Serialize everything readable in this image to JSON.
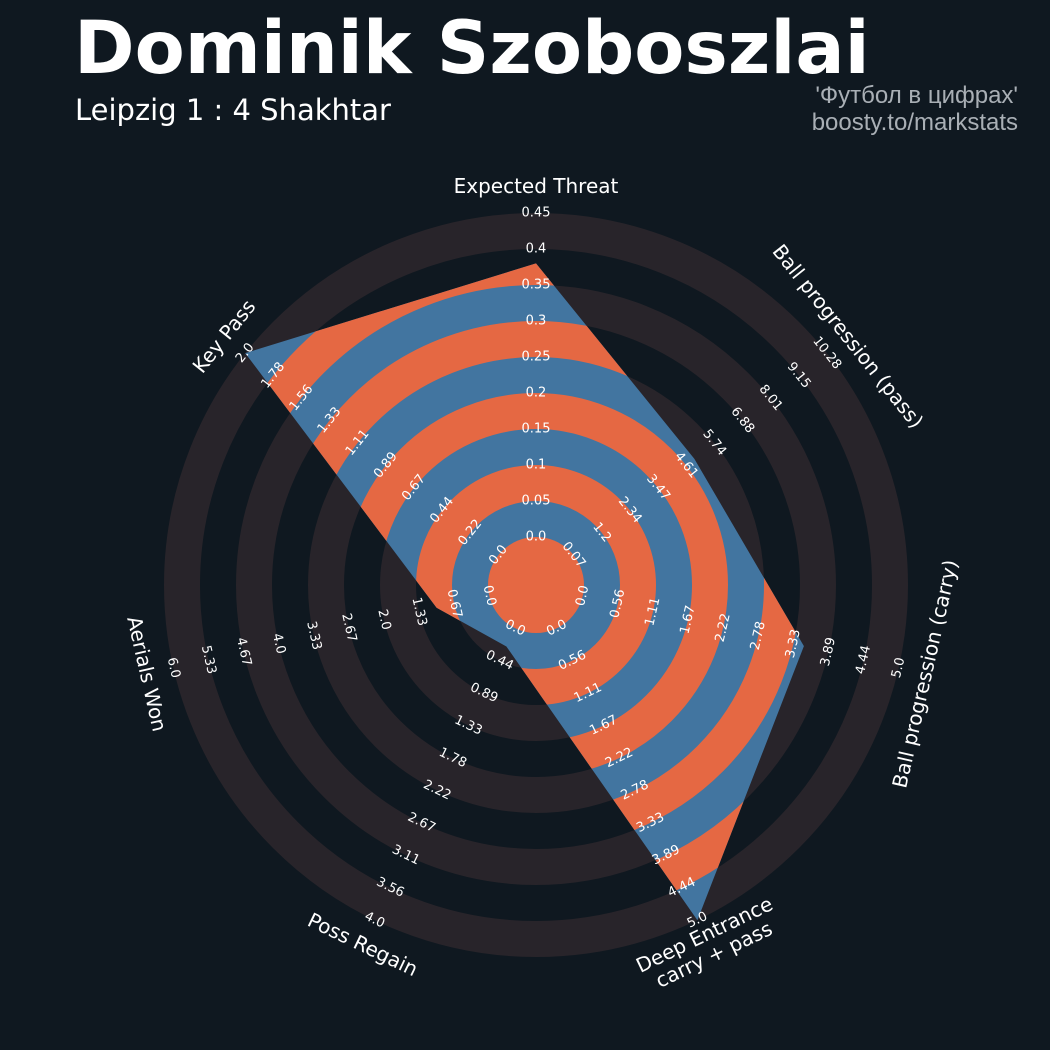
{
  "header": {
    "title": "Dominik Szoboszlai",
    "subtitle": "Leipzig 1 : 4 Shakhtar",
    "credit_line1": "'Футбол в цифрах'",
    "credit_line2": "boosty.to/markstats"
  },
  "colors": {
    "background": "#0f1820",
    "ring_band": "#28242a",
    "player_fill": "#4275a0",
    "player_ring": "#e56843",
    "text": "#ffffff",
    "credit": "#a9afb5"
  },
  "chart_data": {
    "type": "radar",
    "grid": true,
    "legend": "none",
    "axes": [
      {
        "label": "Expected Threat",
        "label_lines": [
          "Expected Threat"
        ],
        "min": 0.0,
        "max": 0.45,
        "ticks": [
          "0.0",
          "0.05",
          "0.1",
          "0.15",
          "0.2",
          "0.25",
          "0.3",
          "0.35",
          "0.4",
          "0.45"
        ]
      },
      {
        "label": "Ball progression (pass)",
        "label_lines": [
          "Ball progression (pass)"
        ],
        "min": 0.0,
        "max": 10.28,
        "ticks": [
          "0.07",
          "1.2",
          "2.34",
          "3.47",
          "4.61",
          "5.74",
          "6.88",
          "8.01",
          "9.15",
          "10.28"
        ]
      },
      {
        "label": "Ball progression (carry)",
        "label_lines": [
          "Ball progression (carry)"
        ],
        "min": 0.0,
        "max": 5.0,
        "ticks": [
          "0.0",
          "0.56",
          "1.11",
          "1.67",
          "2.22",
          "2.78",
          "3.33",
          "3.89",
          "4.44",
          "5.0"
        ]
      },
      {
        "label": "Deep Entrance carry + pass",
        "label_lines": [
          "Deep Entrance",
          "carry + pass"
        ],
        "min": 0.0,
        "max": 5.0,
        "ticks": [
          "0.0",
          "0.56",
          "1.11",
          "1.67",
          "2.22",
          "2.78",
          "3.33",
          "3.89",
          "4.44",
          "5.0"
        ]
      },
      {
        "label": "Poss Regain",
        "label_lines": [
          "Poss Regain"
        ],
        "min": 0.0,
        "max": 4.0,
        "ticks": [
          "0.0",
          "0.44",
          "0.89",
          "1.33",
          "1.78",
          "2.22",
          "2.67",
          "3.11",
          "3.56",
          "4.0"
        ]
      },
      {
        "label": "Aerials Won",
        "label_lines": [
          "Aerials Won"
        ],
        "min": 0.0,
        "max": 6.0,
        "ticks": [
          "0.0",
          "0.67",
          "1.33",
          "2.0",
          "2.67",
          "3.33",
          "4.0",
          "4.67",
          "5.33",
          "6.0"
        ]
      },
      {
        "label": "Key Pass",
        "label_lines": [
          "Key Pass"
        ],
        "min": 0.0,
        "max": 2.0,
        "ticks": [
          "0.0",
          "0.22",
          "0.44",
          "0.67",
          "0.89",
          "1.11",
          "1.33",
          "1.56",
          "1.78",
          "2.0"
        ]
      }
    ],
    "series": [
      {
        "values": [
          0.38,
          4.9,
          3.5,
          5.0,
          0.25,
          1.0,
          2.0
        ]
      }
    ]
  }
}
